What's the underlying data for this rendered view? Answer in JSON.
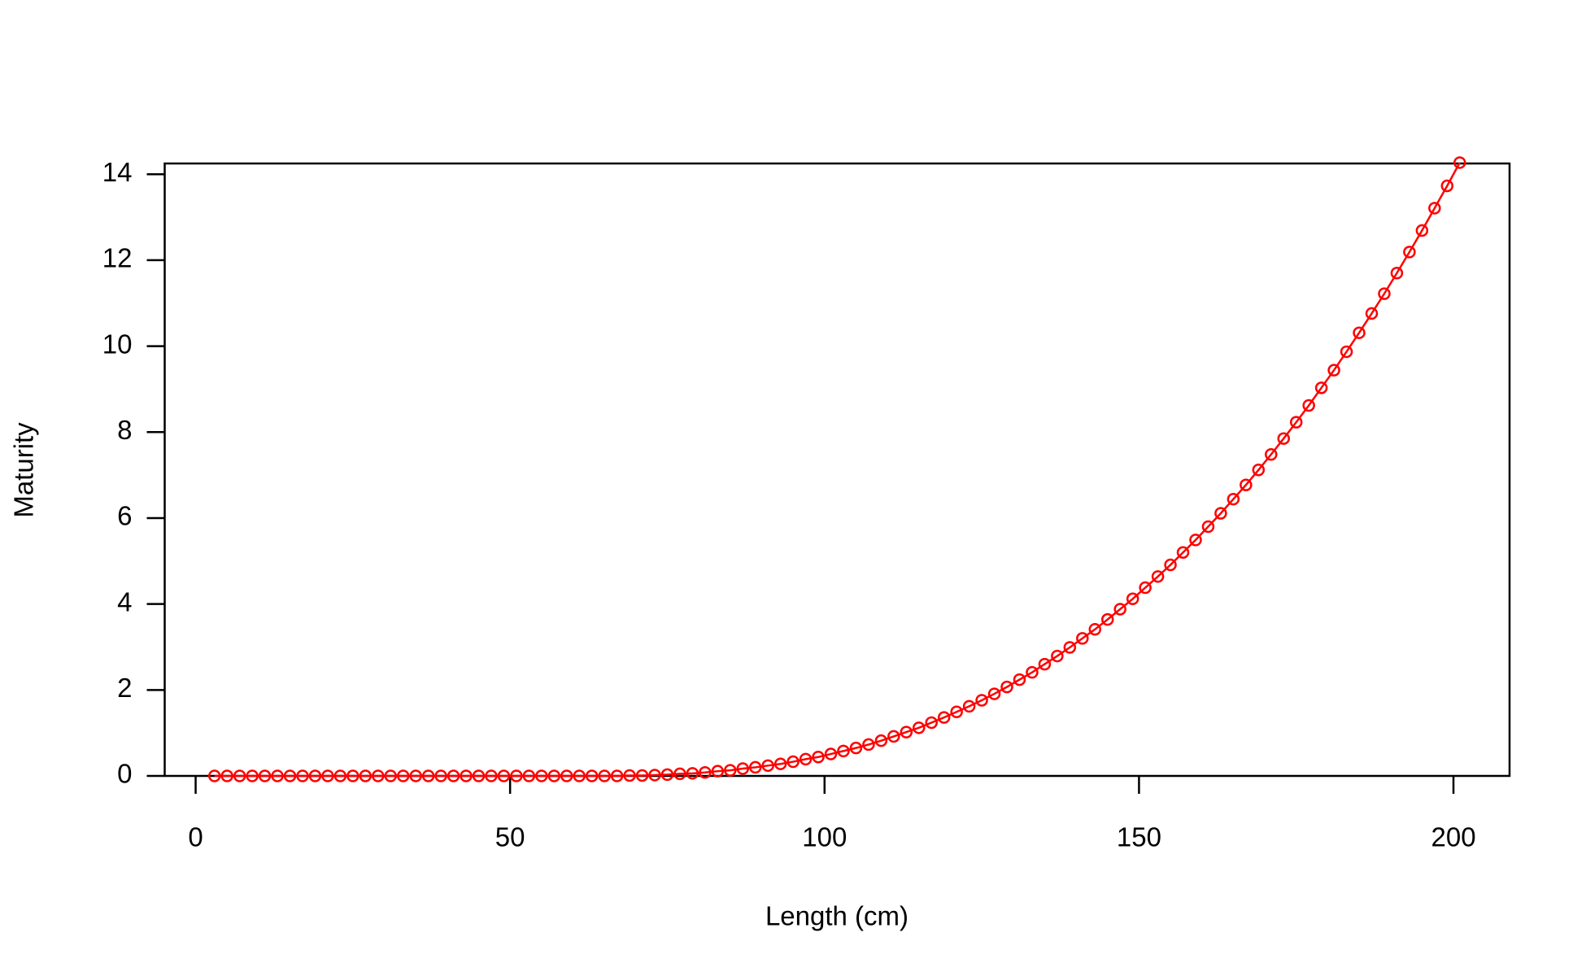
{
  "chart_data": {
    "type": "line",
    "markers": true,
    "color": "#ff0000",
    "xlabel": "Length (cm)",
    "ylabel": "Maturity",
    "x": [
      3,
      5,
      7,
      9,
      11,
      13,
      15,
      17,
      19,
      21,
      23,
      25,
      27,
      29,
      31,
      33,
      35,
      37,
      39,
      41,
      43,
      45,
      47,
      49,
      51,
      53,
      55,
      57,
      59,
      61,
      63,
      65,
      67,
      69,
      71,
      73,
      75,
      77,
      79,
      81,
      83,
      85,
      87,
      89,
      91,
      93,
      95,
      97,
      99,
      101,
      103,
      105,
      107,
      109,
      111,
      113,
      115,
      117,
      119,
      121,
      123,
      125,
      127,
      129,
      131,
      133,
      135,
      137,
      139,
      141,
      143,
      145,
      147,
      149,
      151,
      153,
      155,
      157,
      159,
      161,
      163,
      165,
      167,
      169,
      171,
      173,
      175,
      177,
      179,
      181,
      183,
      185,
      187,
      189,
      191,
      193,
      195,
      197,
      199,
      201
    ],
    "values": [
      0,
      0,
      0,
      0,
      0,
      0,
      0,
      0,
      0,
      0,
      0,
      0,
      0,
      0,
      0,
      0,
      0,
      0,
      0,
      0,
      0,
      0,
      0,
      0,
      0,
      0,
      0,
      0,
      0,
      0,
      0,
      0,
      0,
      0.01,
      0.01,
      0.02,
      0.03,
      0.05,
      0.06,
      0.08,
      0.11,
      0.13,
      0.17,
      0.2,
      0.24,
      0.28,
      0.33,
      0.39,
      0.44,
      0.51,
      0.58,
      0.65,
      0.73,
      0.82,
      0.92,
      1.02,
      1.12,
      1.24,
      1.36,
      1.49,
      1.62,
      1.76,
      1.91,
      2.07,
      2.24,
      2.41,
      2.6,
      2.79,
      2.99,
      3.2,
      3.41,
      3.64,
      3.88,
      4.12,
      4.38,
      4.64,
      4.91,
      5.2,
      5.49,
      5.8,
      6.11,
      6.44,
      6.77,
      7.12,
      7.48,
      7.85,
      8.23,
      8.62,
      9.03,
      9.44,
      9.87,
      10.31,
      10.76,
      11.22,
      11.7,
      12.19,
      12.69,
      13.21,
      13.73,
      14.27
    ],
    "xlim": [
      -4.92,
      208.92
    ],
    "ylim": [
      0,
      14.25
    ],
    "xticks": [
      0,
      50,
      100,
      150,
      200
    ],
    "yticks": [
      0,
      2,
      4,
      6,
      8,
      10,
      12,
      14
    ]
  }
}
